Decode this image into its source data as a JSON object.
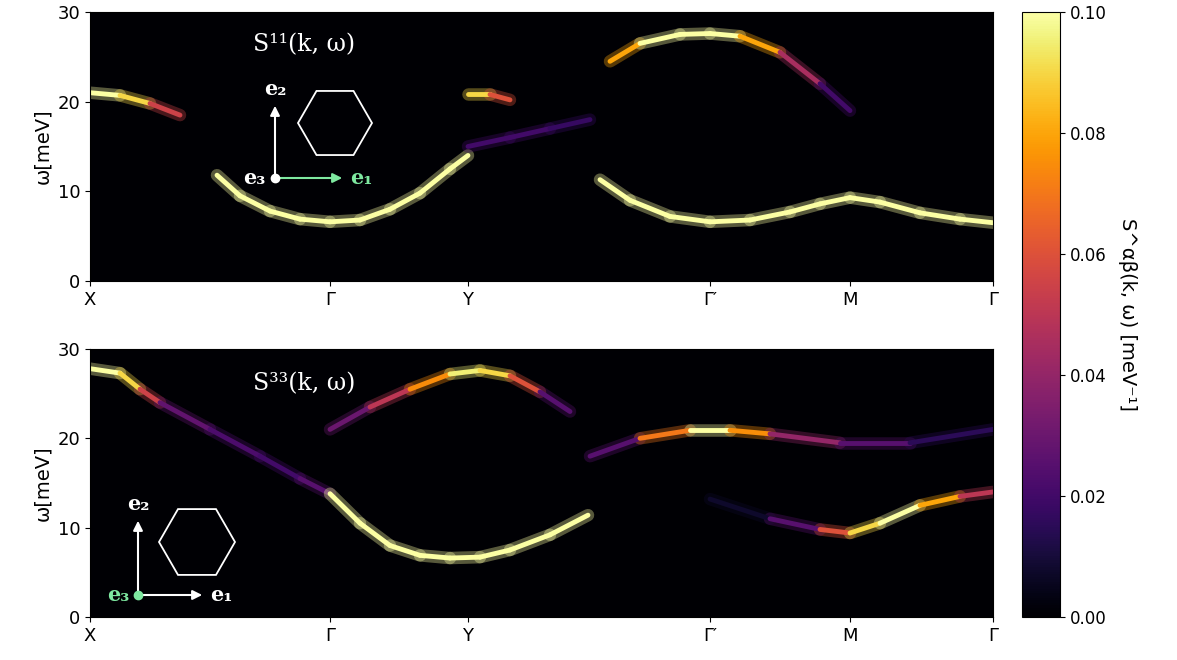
{
  "chart_data": [
    {
      "type": "heatmap",
      "title": "S¹¹(k, ω)",
      "y_label": "ω[meV]",
      "xlim": [
        0,
        9.03
      ],
      "ylim": [
        0,
        30
      ],
      "xticks": [
        {
          "value": 0,
          "label": "X"
        },
        {
          "value": 2.4,
          "label": "Γ"
        },
        {
          "value": 3.78,
          "label": "Y"
        },
        {
          "value": 6.2,
          "label": "Γ′"
        },
        {
          "value": 7.6,
          "label": "M"
        },
        {
          "value": 9.03,
          "label": "Γ"
        }
      ],
      "yticks": [
        0,
        10,
        20,
        30
      ],
      "inset": {
        "labels": [
          "e₁",
          "e₂",
          "e₃"
        ],
        "colors": [
          "#7ee8a0",
          "#ffffff",
          "#ffffff"
        ]
      },
      "series": [
        {
          "x": [
            0,
            0.3,
            0.6,
            0.9
          ],
          "values": [
            21,
            20.7,
            19.8,
            18.5
          ],
          "intensity": [
            0.1,
            0.1,
            0.08,
            0.03
          ]
        },
        {
          "x": [
            1.27,
            1.5,
            1.8,
            2.1,
            2.4,
            2.7,
            3.0,
            3.3,
            3.6,
            3.78
          ],
          "values": [
            11.8,
            9.5,
            7.8,
            6.9,
            6.6,
            6.8,
            8.0,
            9.8,
            12.5,
            14.0
          ],
          "intensity": [
            0.1,
            0.1,
            0.1,
            0.1,
            0.1,
            0.1,
            0.1,
            0.1,
            0.1,
            0.1
          ]
        },
        {
          "x": [
            3.78,
            4.0,
            4.2
          ],
          "values": [
            20.8,
            20.8,
            20.2
          ],
          "intensity": [
            0.1,
            0.08,
            0.04
          ]
        },
        {
          "x": [
            3.78,
            4.2,
            4.6,
            5.0
          ],
          "values": [
            15,
            16,
            17,
            18
          ],
          "intensity": [
            0.02,
            0.02,
            0.02,
            0.015
          ]
        },
        {
          "x": [
            5.2,
            5.5,
            5.9,
            6.2,
            6.5,
            6.9,
            7.3,
            7.6
          ],
          "values": [
            24.5,
            26.5,
            27.5,
            27.6,
            27.3,
            25.5,
            22,
            19
          ],
          "intensity": [
            0.06,
            0.1,
            0.1,
            0.1,
            0.1,
            0.06,
            0.03,
            0.01
          ]
        },
        {
          "x": [
            5.1,
            5.4,
            5.8,
            6.2,
            6.6,
            7.0,
            7.3,
            7.6,
            7.9,
            8.3,
            8.7,
            9.03
          ],
          "values": [
            11.3,
            9.0,
            7.2,
            6.6,
            6.8,
            7.7,
            8.6,
            9.3,
            8.8,
            7.6,
            6.9,
            6.5
          ],
          "intensity": [
            0.1,
            0.1,
            0.1,
            0.1,
            0.1,
            0.1,
            0.1,
            0.1,
            0.1,
            0.1,
            0.1,
            0.1
          ]
        }
      ]
    },
    {
      "type": "heatmap",
      "title": "S³³(k, ω)",
      "y_label": "ω[meV]",
      "xlim": [
        0,
        9.03
      ],
      "ylim": [
        0,
        30
      ],
      "xticks": [
        {
          "value": 0,
          "label": "X"
        },
        {
          "value": 2.4,
          "label": "Γ"
        },
        {
          "value": 3.78,
          "label": "Y"
        },
        {
          "value": 6.2,
          "label": "Γ′"
        },
        {
          "value": 7.6,
          "label": "M"
        },
        {
          "value": 9.03,
          "label": "Γ"
        }
      ],
      "yticks": [
        0,
        10,
        20,
        30
      ],
      "inset": {
        "labels": [
          "e₁",
          "e₂",
          "e₃"
        ],
        "colors": [
          "#ffffff",
          "#ffffff",
          "#7ee8a0"
        ]
      },
      "series": [
        {
          "x": [
            0,
            0.3,
            0.5,
            0.7,
            1.2,
            1.7,
            2.1,
            2.4
          ],
          "values": [
            27.8,
            27.3,
            25.5,
            24,
            21,
            18,
            15.5,
            13.8
          ],
          "intensity": [
            0.1,
            0.1,
            0.08,
            0.03,
            0.025,
            0.02,
            0.02,
            0.03
          ]
        },
        {
          "x": [
            2.4,
            2.7,
            3.0,
            3.3,
            3.6,
            3.9,
            4.2,
            4.6,
            4.98
          ],
          "values": [
            13.8,
            10.5,
            8.0,
            6.9,
            6.6,
            6.7,
            7.5,
            9.2,
            11.4
          ],
          "intensity": [
            0.1,
            0.1,
            0.1,
            0.1,
            0.1,
            0.1,
            0.1,
            0.1,
            0.1
          ]
        },
        {
          "x": [
            2.4,
            2.8,
            3.2,
            3.6,
            3.9,
            4.2,
            4.5,
            4.8
          ],
          "values": [
            21,
            23.5,
            25.5,
            27.2,
            27.6,
            27,
            25.2,
            23
          ],
          "intensity": [
            0.02,
            0.04,
            0.06,
            0.09,
            0.1,
            0.08,
            0.04,
            0.01
          ]
        },
        {
          "x": [
            5.0,
            5.5,
            6.0,
            6.4,
            6.8,
            7.5,
            8.2,
            9.03
          ],
          "values": [
            18,
            20,
            20.9,
            20.9,
            20.5,
            19.5,
            19.5,
            21
          ],
          "intensity": [
            0.01,
            0.04,
            0.1,
            0.1,
            0.05,
            0.03,
            0.02,
            0.01
          ]
        },
        {
          "x": [
            6.2,
            6.8,
            7.3,
            7.6,
            7.9,
            8.3,
            8.7,
            9.03
          ],
          "values": [
            13.2,
            11,
            9.8,
            9.4,
            10.5,
            12.5,
            13.5,
            14
          ],
          "intensity": [
            0.005,
            0.01,
            0.04,
            0.08,
            0.1,
            0.1,
            0.06,
            0.04
          ]
        }
      ]
    }
  ],
  "colorbar": {
    "label": "S^αβ(k, ω) [meV⁻¹]",
    "lim": [
      0,
      0.1
    ],
    "ticks": [
      {
        "value": 0,
        "label": "0.00"
      },
      {
        "value": 0.02,
        "label": "0.02"
      },
      {
        "value": 0.04,
        "label": "0.04"
      },
      {
        "value": 0.06,
        "label": "0.06"
      },
      {
        "value": 0.08,
        "label": "0.08"
      },
      {
        "value": 0.1,
        "label": "0.10"
      }
    ]
  }
}
